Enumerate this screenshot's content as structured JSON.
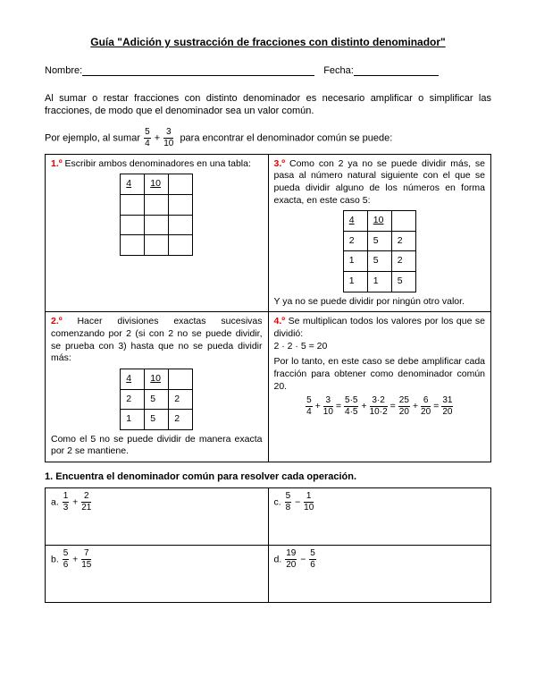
{
  "title": "Guía \"Adición y sustracción de fracciones con distinto denominador\"",
  "labels": {
    "name": "Nombre:",
    "date": "Fecha:"
  },
  "intro": "Al sumar o restar fracciones con distinto denominador es necesario amplificar o simplificar las fracciones, de modo que el denominador sea un valor común.",
  "example_pre": "Por ejemplo, al sumar",
  "example_post": "para encontrar el denominador común se puede:",
  "example_frac": {
    "a_num": "5",
    "a_den": "4",
    "b_num": "3",
    "b_den": "10"
  },
  "steps": {
    "s1": {
      "num": "1.º",
      "text": "Escribir ambos denominadores en una tabla:"
    },
    "s2": {
      "num": "2.º",
      "text": "Hacer divisiones exactas sucesivas comenzando por 2 (si con 2 no se puede dividir, se prueba con 3) hasta que no se pueda dividir más:",
      "tail": "Como el 5 no se puede dividir de manera exacta por 2 se mantiene."
    },
    "s3": {
      "num": "3.º",
      "text": "Como con 2 ya no se puede dividir más, se pasa al número natural siguiente con el que se pueda dividir alguno de los números en forma exacta, en este caso 5:",
      "tail": "Y ya no se puede dividir por ningún otro valor."
    },
    "s4": {
      "num": "4.º",
      "text": "Se multiplican todos los valores por los que se dividió:",
      "calc": "2 · 2 · 5 = 20",
      "explain": "Por lo tanto, en este caso se debe amplificar cada fracción para obtener como denominador común 20."
    }
  },
  "factor1": {
    "header": [
      "4",
      "10"
    ]
  },
  "factor2": {
    "header": [
      "4",
      "10"
    ],
    "rows": [
      [
        "2",
        "5",
        "2"
      ],
      [
        "1",
        "5",
        "2"
      ]
    ]
  },
  "factor3": {
    "header": [
      "4",
      "10"
    ],
    "rows": [
      [
        "2",
        "5",
        "2"
      ],
      [
        "1",
        "5",
        "2"
      ],
      [
        "1",
        "1",
        "5"
      ]
    ]
  },
  "eq": {
    "parts": [
      {
        "n": "5",
        "d": "4"
      },
      {
        "op": "+"
      },
      {
        "n": "3",
        "d": "10"
      },
      {
        "op": "="
      },
      {
        "n": "5·5",
        "d": "4·5"
      },
      {
        "op": "+"
      },
      {
        "n": "3·2",
        "d": "10·2"
      },
      {
        "op": "="
      },
      {
        "n": "25",
        "d": "20"
      },
      {
        "op": "+"
      },
      {
        "n": "6",
        "d": "20"
      },
      {
        "op": "="
      },
      {
        "n": "31",
        "d": "20"
      }
    ]
  },
  "exercise_head": "1. Encuentra el denominador común para resolver cada operación.",
  "ex": {
    "a": {
      "label": "a.",
      "f1n": "1",
      "f1d": "3",
      "op": "+",
      "f2n": "2",
      "f2d": "21"
    },
    "b": {
      "label": "b.",
      "f1n": "5",
      "f1d": "6",
      "op": "+",
      "f2n": "7",
      "f2d": "15"
    },
    "c": {
      "label": "c.",
      "f1n": "5",
      "f1d": "8",
      "op": "−",
      "f2n": "1",
      "f2d": "10"
    },
    "d": {
      "label": "d.",
      "f1n": "19",
      "f1d": "20",
      "op": "−",
      "f2n": "5",
      "f2d": "6"
    }
  }
}
